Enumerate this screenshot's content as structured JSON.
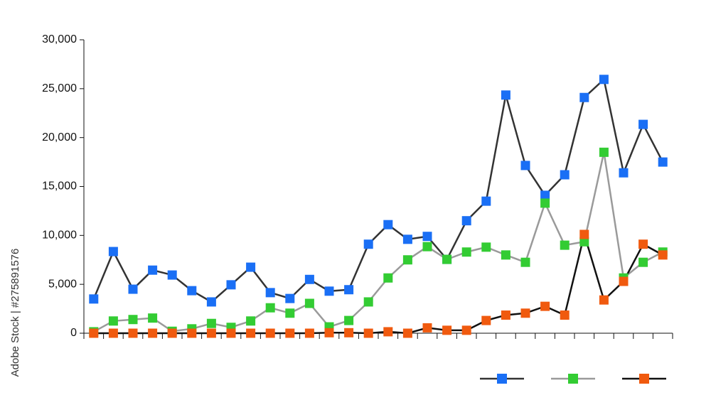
{
  "chart_data": {
    "type": "line",
    "watermark": "Adobe Stock | #275891576",
    "categories": [
      null,
      null,
      null,
      null,
      null,
      null,
      null,
      null,
      null,
      null,
      null,
      null,
      null,
      null,
      null,
      null,
      null,
      null,
      null,
      null,
      null,
      null,
      null,
      null,
      null,
      null,
      null,
      null,
      null,
      null
    ],
    "series": [
      {
        "color": "#1a6ff5",
        "line_color": "#333333",
        "values": [
          3500,
          8350,
          4500,
          6450,
          5950,
          4350,
          3200,
          4950,
          6750,
          4150,
          3550,
          5500,
          4300,
          4450,
          9100,
          11100,
          9600,
          9900,
          7550,
          11500,
          13500,
          24350,
          17150,
          14100,
          16200,
          24100,
          25950,
          16400,
          21350,
          17500
        ]
      },
      {
        "color": "#33cc33",
        "line_color": "#9a9a9a",
        "values": [
          150,
          1250,
          1400,
          1550,
          200,
          450,
          1000,
          600,
          1250,
          2600,
          2050,
          3050,
          650,
          1300,
          3200,
          5650,
          7500,
          8850,
          7550,
          8300,
          8800,
          8000,
          7250,
          13300,
          9000,
          9350,
          18500,
          5650,
          7250,
          8300
        ]
      },
      {
        "color": "#f05a0f",
        "line_color": "#111111",
        "values": [
          0,
          0,
          0,
          0,
          0,
          0,
          0,
          0,
          0,
          0,
          0,
          0,
          50,
          50,
          0,
          150,
          0,
          550,
          300,
          300,
          1300,
          1850,
          2050,
          2750,
          1850,
          10100,
          3400,
          5300,
          9100,
          8000
        ]
      }
    ],
    "ylim": [
      0,
      30000
    ],
    "yticks": [
      0,
      {
        "value": 5000,
        "label": "5,000"
      },
      {
        "value": 10000,
        "label": "10,000"
      },
      {
        "value": 15000,
        "label": "15,000"
      },
      {
        "value": 20000,
        "label": "20,000"
      },
      {
        "value": 25000,
        "label": "25,000"
      },
      {
        "value": 30000,
        "label": "30,000"
      }
    ],
    "legend": "bottom-right",
    "grid": false
  }
}
